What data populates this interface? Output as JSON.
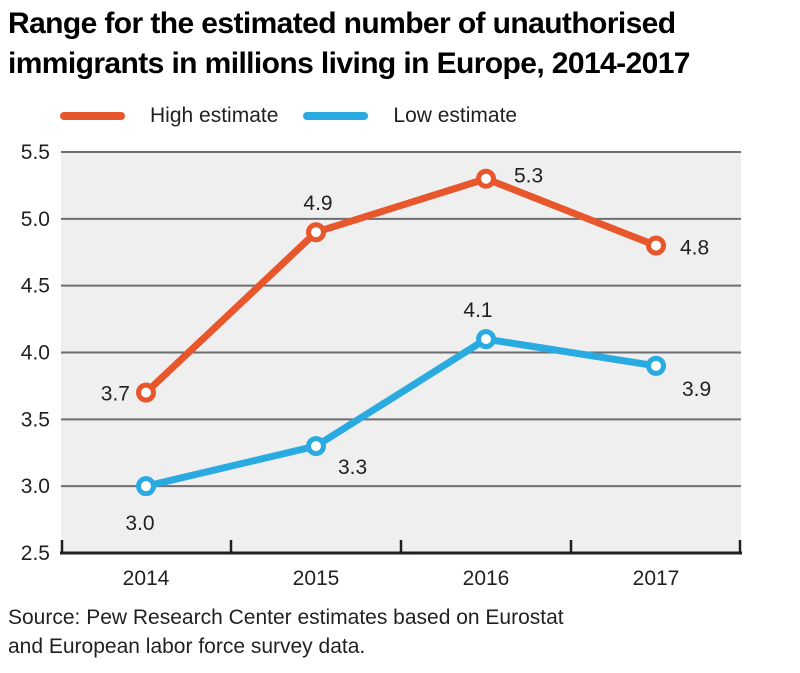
{
  "title": {
    "line1": "Range for the estimated number of unauthorised",
    "line2": "immigrants in millions living in Europe, 2014-2017"
  },
  "legend": [
    {
      "label": "High estimate",
      "color": "#e8562c"
    },
    {
      "label": "Low estimate",
      "color": "#29abe2"
    }
  ],
  "source": {
    "line1": "Source: Pew Research Center estimates based on Eurostat",
    "line2": "and European labor force survey data."
  },
  "chart_data": {
    "type": "line",
    "title": "Range for the estimated number of unauthorised immigrants in millions living in Europe, 2014-2017",
    "categories": [
      "2014",
      "2015",
      "2016",
      "2017"
    ],
    "series": [
      {
        "name": "High estimate",
        "color": "#e8562c",
        "values": [
          3.7,
          4.9,
          5.3,
          4.8
        ]
      },
      {
        "name": "Low estimate",
        "color": "#29abe2",
        "values": [
          3.0,
          3.3,
          4.1,
          3.9
        ]
      }
    ],
    "ylim": [
      2.5,
      5.5
    ],
    "yticks": [
      2.5,
      3.0,
      3.5,
      4.0,
      4.5,
      5.0,
      5.5
    ],
    "grid": true,
    "legend_position": "top",
    "plot_bg": "#efefef",
    "gridline_color": "#6d6e71",
    "axis_color": "#231f20",
    "label_color": "#231f20",
    "marker": "open-circle",
    "point_labels": true
  }
}
